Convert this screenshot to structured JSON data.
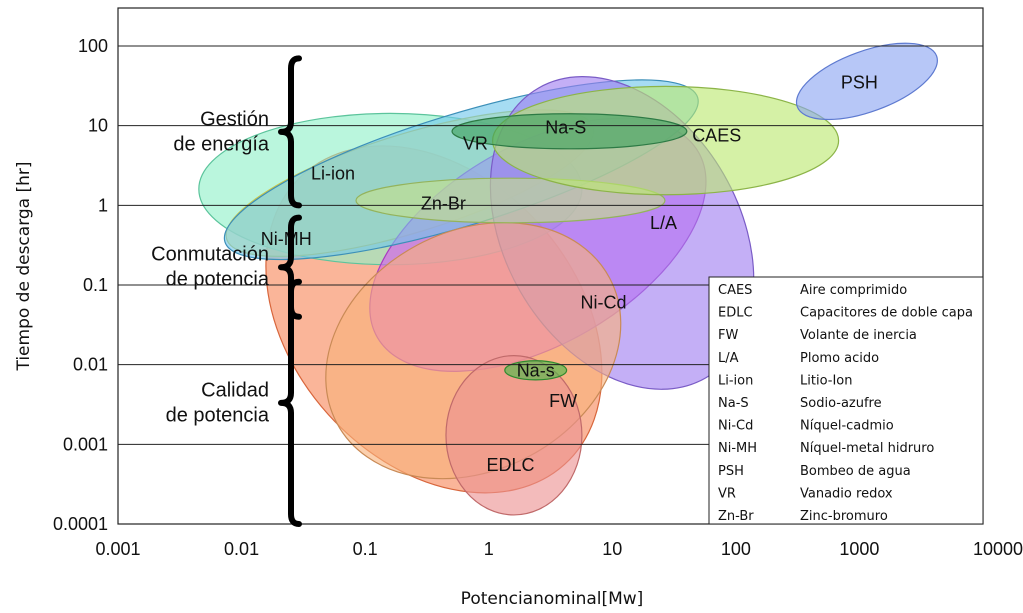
{
  "chart_data": {
    "type": "bubble-region",
    "xlabel": "Potencianominal[Mw]",
    "ylabel": "Tiempo de descarga [hr]",
    "x_scale": "log",
    "y_scale": "log",
    "xlim": [
      0.001,
      10000
    ],
    "ylim": [
      0.0001,
      300
    ],
    "x_ticks": [
      {
        "value": 0.001,
        "label": "0.001"
      },
      {
        "value": 0.01,
        "label": "0.01"
      },
      {
        "value": 0.1,
        "label": "0.1"
      },
      {
        "value": 1,
        "label": "1"
      },
      {
        "value": 10,
        "label": "10"
      },
      {
        "value": 100,
        "label": "100"
      },
      {
        "value": 1000,
        "label": "1000"
      },
      {
        "value": 10000,
        "label": "10000"
      }
    ],
    "y_ticks": [
      {
        "value": 0.0001,
        "label": "0.0001"
      },
      {
        "value": 0.001,
        "label": "0.001"
      },
      {
        "value": 0.01,
        "label": "0.01"
      },
      {
        "value": 0.1,
        "label": "0.1"
      },
      {
        "value": 1,
        "label": "1"
      },
      {
        "value": 10,
        "label": "10"
      },
      {
        "value": 100,
        "label": "100"
      }
    ],
    "horizontal_gridlines_at": [
      0.001,
      0.01,
      0.1,
      1,
      10,
      100
    ],
    "regions": [
      {
        "name": "Ni-MH",
        "cx": 0.36,
        "cy": 0.037,
        "rx_decades": 1.15,
        "ry_decades": 2.45,
        "rot": -42,
        "fill": "#f7885a",
        "stroke": "#d8663c",
        "label": "Ni-MH",
        "label_x": 0.023,
        "label_y": 0.38
      },
      {
        "name": "Li-ion",
        "cx": 0.16,
        "cy": 1.6,
        "rx_decades": 1.55,
        "ry_decades": 0.95,
        "rot": 0,
        "fill": "#8ff0c8",
        "stroke": "#5cc49c",
        "label": "Li-ion",
        "label_x": 0.055,
        "label_y": 2.5
      },
      {
        "name": "Li-ion-yellow",
        "cx": 0.23,
        "cy": 1.9,
        "rx_decades": 1.55,
        "ry_decades": 0.62,
        "rot": -17,
        "fill": "#f3f075",
        "stroke": "#c9c548",
        "label": "",
        "label_x": 0,
        "label_y": 0
      },
      {
        "name": "Ni-Cd",
        "cx": 2.5,
        "cy": 0.32,
        "rx_decades": 1.5,
        "ry_decades": 1.25,
        "rot": -30,
        "fill": "#d858f0",
        "stroke": "#a83cc0",
        "label": "Ni-Cd",
        "label_x": 8.5,
        "label_y": 0.06
      },
      {
        "name": "VR",
        "cx": 0.6,
        "cy": 2.8,
        "rx_decades": 2.0,
        "ry_decades": 0.7,
        "rot": -17,
        "fill": "#70c6ec",
        "stroke": "#3c8fb8",
        "label": "VR",
        "label_x": 0.78,
        "label_y": 6.0
      },
      {
        "name": "L/A",
        "cx": 12.0,
        "cy": 0.45,
        "rx_decades": 0.95,
        "ry_decades": 2.1,
        "rot": -30,
        "fill": "#a07ef0",
        "stroke": "#7a5cc6",
        "label": "L/A",
        "label_x": 26,
        "label_y": 0.6
      },
      {
        "name": "FW",
        "cx": 0.75,
        "cy": 0.015,
        "rx_decades": 1.25,
        "ry_decades": 1.5,
        "rot": -28,
        "fill": "#f8b27a",
        "stroke": "#c98a56",
        "label": "FW",
        "label_x": 4.0,
        "label_y": 0.0035
      },
      {
        "name": "EDLC",
        "cx": 1.6,
        "cy": 0.0013,
        "rx_decades": 0.55,
        "ry_decades": 1.0,
        "rot": 0,
        "fill": "#ec9292",
        "stroke": "#c06a6a",
        "label": "EDLC",
        "label_x": 1.5,
        "label_y": 0.00055
      },
      {
        "name": "Zn-Br",
        "cx": 1.5,
        "cy": 1.15,
        "rx_decades": 1.25,
        "ry_decades": 0.28,
        "rot": 0,
        "fill": "#c5e08a",
        "stroke": "#94b35c",
        "label": "Zn-Br",
        "label_x": 0.43,
        "label_y": 1.05
      },
      {
        "name": "CAES",
        "cx": 27,
        "cy": 6.5,
        "rx_decades": 1.4,
        "ry_decades": 0.68,
        "rot": 0,
        "fill": "#bce870",
        "stroke": "#8cb448",
        "label": "CAES",
        "label_x": 70,
        "label_y": 7.5
      },
      {
        "name": "Na-S",
        "cx": 4.5,
        "cy": 8.5,
        "rx_decades": 0.95,
        "ry_decades": 0.22,
        "rot": 0,
        "fill": "#3fa25e",
        "stroke": "#2d7a45",
        "label": "Na-S",
        "label_x": 4.2,
        "label_y": 9.5
      },
      {
        "name": "Na-s",
        "cx": 2.4,
        "cy": 0.0085,
        "rx_decades": 0.25,
        "ry_decades": 0.12,
        "rot": 0,
        "fill": "#48bc48",
        "stroke": "#2f8a2f",
        "label": "Na-s",
        "label_x": 2.4,
        "label_y": 0.0085
      },
      {
        "name": "PSH",
        "cx": 1150,
        "cy": 36,
        "rx_decades": 0.6,
        "ry_decades": 0.38,
        "rot": -20,
        "fill": "#8aa4f2",
        "stroke": "#5e7ad0",
        "label": "PSH",
        "label_x": 1000,
        "label_y": 35
      }
    ],
    "bracket_groups": [
      {
        "lines": [
          "Gestión",
          "de energía"
        ],
        "y_from": 1,
        "y_to": 70
      },
      {
        "lines": [
          "Conmutación",
          "de potencia"
        ],
        "y_from": 0.04,
        "y_to": 0.7
      },
      {
        "lines": [
          "Calidad",
          "de potencia"
        ],
        "y_from": 0.0001,
        "y_to": 0.11
      }
    ],
    "legend": [
      {
        "abbr": "CAES",
        "desc": "Aire comprimido"
      },
      {
        "abbr": "EDLC",
        "desc": "Capacitores de doble capa"
      },
      {
        "abbr": "FW",
        "desc": "Volante de inercia"
      },
      {
        "abbr": "L/A",
        "desc": "Plomo acido"
      },
      {
        "abbr": "Li-ion",
        "desc": "Litio-Ion"
      },
      {
        "abbr": "Na-S",
        "desc": "Sodio-azufre"
      },
      {
        "abbr": "Ni-Cd",
        "desc": "Níquel-cadmio"
      },
      {
        "abbr": "Ni-MH",
        "desc": "Níquel-metal hidruro"
      },
      {
        "abbr": "PSH",
        "desc": "Bombeo de agua"
      },
      {
        "abbr": "VR",
        "desc": "Vanadio redox"
      },
      {
        "abbr": "Zn-Br",
        "desc": "Zinc-bromuro"
      }
    ],
    "legend_position": "bottom-right"
  }
}
